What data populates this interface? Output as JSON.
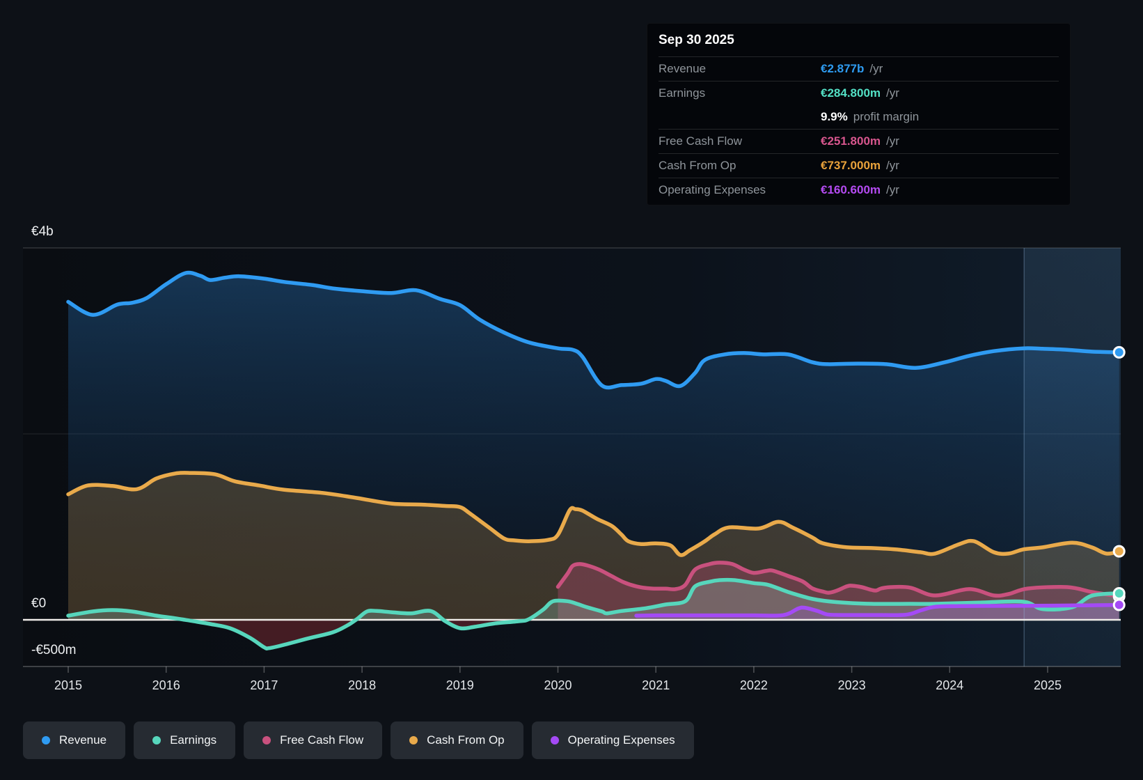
{
  "tooltip": {
    "date": "Sep 30 2025",
    "rows": [
      {
        "label": "Revenue",
        "value": "€2.877b",
        "suffix": "/yr",
        "color": "#2e9bf0"
      },
      {
        "label": "Earnings",
        "value": "€284.800m",
        "suffix": "/yr",
        "color": "#53e0c5"
      },
      {
        "label": "",
        "value": "9.9%",
        "suffix": "profit margin",
        "color": "#ffffff"
      },
      {
        "label": "Free Cash Flow",
        "value": "€251.800m",
        "suffix": "/yr",
        "color": "#d8568e"
      },
      {
        "label": "Cash From Op",
        "value": "€737.000m",
        "suffix": "/yr",
        "color": "#e9a23b"
      },
      {
        "label": "Operating Expenses",
        "value": "€160.600m",
        "suffix": "/yr",
        "color": "#b44bf2"
      }
    ]
  },
  "legend": [
    {
      "label": "Revenue",
      "color": "#2f9bf2"
    },
    {
      "label": "Earnings",
      "color": "#57d6bc"
    },
    {
      "label": "Free Cash Flow",
      "color": "#c9517e"
    },
    {
      "label": "Cash From Op",
      "color": "#e9aa4b"
    },
    {
      "label": "Operating Expenses",
      "color": "#a44af5"
    }
  ],
  "chart_data": {
    "type": "area",
    "unit": "EUR millions",
    "x_ticks": [
      2015,
      2016,
      2017,
      2018,
      2019,
      2020,
      2021,
      2022,
      2023,
      2024,
      2025
    ],
    "y_ticks": [
      {
        "label": "€4b",
        "value": 4000
      },
      {
        "label": "€0",
        "value": 0
      },
      {
        "label": "-€500m",
        "value": -500
      }
    ],
    "ylim": [
      -500,
      4000
    ],
    "xlim": [
      2015,
      2025.73
    ],
    "highlight_band_start": 2024.76,
    "grid": "horizontal",
    "legend_position": "bottom",
    "series": [
      {
        "name": "Revenue",
        "color": "#2f9bf2",
        "fill_top": "rgba(43,125,200,0.35)",
        "fill_bottom": "rgba(20,60,105,0.08)",
        "points": [
          [
            2015.0,
            3420
          ],
          [
            2015.25,
            3280
          ],
          [
            2015.5,
            3390
          ],
          [
            2015.65,
            3410
          ],
          [
            2015.8,
            3460
          ],
          [
            2016.0,
            3610
          ],
          [
            2016.2,
            3730
          ],
          [
            2016.35,
            3700
          ],
          [
            2016.45,
            3655
          ],
          [
            2016.6,
            3680
          ],
          [
            2016.75,
            3695
          ],
          [
            2017.0,
            3670
          ],
          [
            2017.2,
            3635
          ],
          [
            2017.5,
            3600
          ],
          [
            2017.7,
            3565
          ],
          [
            2018.0,
            3535
          ],
          [
            2018.3,
            3515
          ],
          [
            2018.55,
            3545
          ],
          [
            2018.8,
            3450
          ],
          [
            2019.0,
            3385
          ],
          [
            2019.2,
            3230
          ],
          [
            2019.45,
            3090
          ],
          [
            2019.7,
            2985
          ],
          [
            2020.0,
            2920
          ],
          [
            2020.15,
            2905
          ],
          [
            2020.25,
            2830
          ],
          [
            2020.45,
            2520
          ],
          [
            2020.65,
            2525
          ],
          [
            2020.85,
            2540
          ],
          [
            2021.0,
            2590
          ],
          [
            2021.1,
            2570
          ],
          [
            2021.25,
            2515
          ],
          [
            2021.4,
            2655
          ],
          [
            2021.5,
            2795
          ],
          [
            2021.7,
            2855
          ],
          [
            2021.9,
            2870
          ],
          [
            2022.1,
            2855
          ],
          [
            2022.35,
            2855
          ],
          [
            2022.6,
            2770
          ],
          [
            2022.75,
            2750
          ],
          [
            2023.0,
            2755
          ],
          [
            2023.35,
            2750
          ],
          [
            2023.65,
            2710
          ],
          [
            2023.95,
            2770
          ],
          [
            2024.2,
            2840
          ],
          [
            2024.45,
            2890
          ],
          [
            2024.75,
            2920
          ],
          [
            2024.95,
            2915
          ],
          [
            2025.2,
            2905
          ],
          [
            2025.45,
            2885
          ],
          [
            2025.73,
            2877
          ]
        ]
      },
      {
        "name": "Cash From Op",
        "color": "#e9aa4b",
        "fill": "rgba(233,170,78,0.22)",
        "points": [
          [
            2015.0,
            1350
          ],
          [
            2015.2,
            1445
          ],
          [
            2015.45,
            1440
          ],
          [
            2015.7,
            1405
          ],
          [
            2015.9,
            1520
          ],
          [
            2016.1,
            1575
          ],
          [
            2016.25,
            1580
          ],
          [
            2016.5,
            1565
          ],
          [
            2016.7,
            1490
          ],
          [
            2016.95,
            1445
          ],
          [
            2017.2,
            1400
          ],
          [
            2017.6,
            1365
          ],
          [
            2017.95,
            1310
          ],
          [
            2018.3,
            1250
          ],
          [
            2018.6,
            1240
          ],
          [
            2018.85,
            1225
          ],
          [
            2019.0,
            1213
          ],
          [
            2019.1,
            1145
          ],
          [
            2019.3,
            990
          ],
          [
            2019.45,
            875
          ],
          [
            2019.55,
            855
          ],
          [
            2019.7,
            845
          ],
          [
            2019.9,
            860
          ],
          [
            2020.0,
            915
          ],
          [
            2020.12,
            1180
          ],
          [
            2020.18,
            1190
          ],
          [
            2020.25,
            1175
          ],
          [
            2020.4,
            1085
          ],
          [
            2020.55,
            1010
          ],
          [
            2020.65,
            915
          ],
          [
            2020.72,
            845
          ],
          [
            2020.85,
            815
          ],
          [
            2021.0,
            822
          ],
          [
            2021.15,
            800
          ],
          [
            2021.25,
            697
          ],
          [
            2021.35,
            750
          ],
          [
            2021.5,
            845
          ],
          [
            2021.6,
            920
          ],
          [
            2021.75,
            995
          ],
          [
            2022.05,
            982
          ],
          [
            2022.25,
            1055
          ],
          [
            2022.4,
            990
          ],
          [
            2022.6,
            885
          ],
          [
            2022.7,
            825
          ],
          [
            2022.95,
            780
          ],
          [
            2023.2,
            772
          ],
          [
            2023.45,
            757
          ],
          [
            2023.7,
            727
          ],
          [
            2023.85,
            712
          ],
          [
            2024.1,
            815
          ],
          [
            2024.25,
            845
          ],
          [
            2024.45,
            727
          ],
          [
            2024.6,
            712
          ],
          [
            2024.75,
            757
          ],
          [
            2024.95,
            780
          ],
          [
            2025.25,
            830
          ],
          [
            2025.45,
            780
          ],
          [
            2025.6,
            712
          ],
          [
            2025.73,
            737
          ]
        ]
      },
      {
        "name": "Free Cash Flow",
        "color": "#c9517e",
        "fill": "rgba(201,81,126,0.30)",
        "points": [
          [
            2020.0,
            355
          ],
          [
            2020.1,
            500
          ],
          [
            2020.15,
            580
          ],
          [
            2020.22,
            600
          ],
          [
            2020.3,
            585
          ],
          [
            2020.42,
            540
          ],
          [
            2020.55,
            470
          ],
          [
            2020.67,
            405
          ],
          [
            2020.8,
            360
          ],
          [
            2020.95,
            337
          ],
          [
            2021.1,
            335
          ],
          [
            2021.2,
            330
          ],
          [
            2021.3,
            375
          ],
          [
            2021.4,
            540
          ],
          [
            2021.55,
            600
          ],
          [
            2021.65,
            615
          ],
          [
            2021.78,
            600
          ],
          [
            2021.9,
            540
          ],
          [
            2022.0,
            505
          ],
          [
            2022.12,
            525
          ],
          [
            2022.18,
            532
          ],
          [
            2022.25,
            510
          ],
          [
            2022.35,
            472
          ],
          [
            2022.5,
            412
          ],
          [
            2022.6,
            337
          ],
          [
            2022.72,
            300
          ],
          [
            2022.77,
            292
          ],
          [
            2022.85,
            315
          ],
          [
            2022.95,
            360
          ],
          [
            2023.0,
            367
          ],
          [
            2023.1,
            352
          ],
          [
            2023.2,
            322
          ],
          [
            2023.25,
            315
          ],
          [
            2023.3,
            337
          ],
          [
            2023.4,
            352
          ],
          [
            2023.6,
            345
          ],
          [
            2023.85,
            262
          ],
          [
            2024.2,
            330
          ],
          [
            2024.45,
            262
          ],
          [
            2024.6,
            277
          ],
          [
            2024.8,
            337
          ],
          [
            2025.2,
            352
          ],
          [
            2025.45,
            300
          ],
          [
            2025.73,
            251.8
          ]
        ]
      },
      {
        "name": "Earnings",
        "color": "#57d6bc",
        "fill": "rgba(158,214,202,0.26)",
        "negative_fill": "rgba(190,55,65,0.32)",
        "points": [
          [
            2015.0,
            45
          ],
          [
            2015.25,
            90
          ],
          [
            2015.45,
            105
          ],
          [
            2015.65,
            90
          ],
          [
            2015.9,
            45
          ],
          [
            2016.1,
            15
          ],
          [
            2016.25,
            -10
          ],
          [
            2016.45,
            -45
          ],
          [
            2016.65,
            -90
          ],
          [
            2016.85,
            -190
          ],
          [
            2017.0,
            -295
          ],
          [
            2017.05,
            -305
          ],
          [
            2017.2,
            -270
          ],
          [
            2017.45,
            -200
          ],
          [
            2017.7,
            -135
          ],
          [
            2017.85,
            -60
          ],
          [
            2017.95,
            10
          ],
          [
            2018.05,
            90
          ],
          [
            2018.15,
            95
          ],
          [
            2018.3,
            82
          ],
          [
            2018.5,
            70
          ],
          [
            2018.7,
            95
          ],
          [
            2018.85,
            -15
          ],
          [
            2019.0,
            -90
          ],
          [
            2019.15,
            -75
          ],
          [
            2019.35,
            -40
          ],
          [
            2019.6,
            -15
          ],
          [
            2019.7,
            5
          ],
          [
            2019.85,
            110
          ],
          [
            2019.95,
            200
          ],
          [
            2020.1,
            200
          ],
          [
            2020.2,
            170
          ],
          [
            2020.3,
            135
          ],
          [
            2020.45,
            90
          ],
          [
            2020.5,
            70
          ],
          [
            2020.65,
            95
          ],
          [
            2020.9,
            125
          ],
          [
            2021.1,
            165
          ],
          [
            2021.3,
            200
          ],
          [
            2021.4,
            360
          ],
          [
            2021.55,
            410
          ],
          [
            2021.65,
            427
          ],
          [
            2021.8,
            427
          ],
          [
            2022.0,
            395
          ],
          [
            2022.15,
            375
          ],
          [
            2022.35,
            300
          ],
          [
            2022.6,
            225
          ],
          [
            2022.85,
            190
          ],
          [
            2023.2,
            172
          ],
          [
            2023.6,
            172
          ],
          [
            2023.85,
            172
          ],
          [
            2024.3,
            185
          ],
          [
            2024.75,
            195
          ],
          [
            2024.95,
            115
          ],
          [
            2025.25,
            135
          ],
          [
            2025.45,
            260
          ],
          [
            2025.73,
            284.8
          ]
        ]
      },
      {
        "name": "Operating Expenses",
        "color": "#a44af5",
        "fill": "rgba(164,74,245,0.20)",
        "points": [
          [
            2020.8,
            45
          ],
          [
            2021.0,
            48
          ],
          [
            2021.3,
            48
          ],
          [
            2021.6,
            48
          ],
          [
            2022.0,
            48
          ],
          [
            2022.3,
            50
          ],
          [
            2022.45,
            120
          ],
          [
            2022.52,
            130
          ],
          [
            2022.65,
            95
          ],
          [
            2022.75,
            58
          ],
          [
            2022.9,
            52
          ],
          [
            2023.2,
            52
          ],
          [
            2023.55,
            55
          ],
          [
            2023.7,
            100
          ],
          [
            2023.85,
            140
          ],
          [
            2024.1,
            148
          ],
          [
            2024.5,
            150
          ],
          [
            2024.9,
            152
          ],
          [
            2025.3,
            155
          ],
          [
            2025.5,
            157
          ],
          [
            2025.73,
            160.6
          ]
        ]
      }
    ]
  }
}
